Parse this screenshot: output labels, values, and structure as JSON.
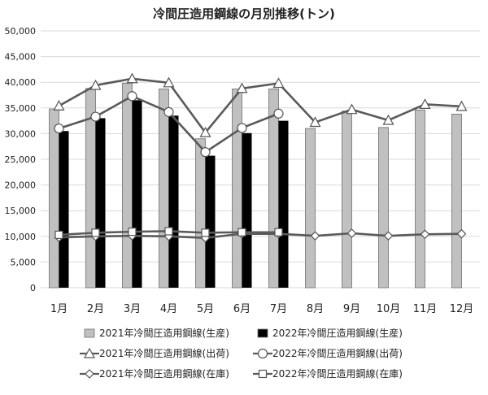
{
  "chart_data": {
    "type": "bar",
    "title": "冷間圧造用鋼線の月別推移(トン)",
    "categories": [
      "1月",
      "2月",
      "3月",
      "4月",
      "5月",
      "6月",
      "7月",
      "8月",
      "9月",
      "10月",
      "11月",
      "12月"
    ],
    "ylim": [
      0,
      50000
    ],
    "yticks": [
      "0",
      "5,000",
      "10,000",
      "15,000",
      "20,000",
      "25,000",
      "30,000",
      "35,000",
      "40,000",
      "45,000",
      "50,000"
    ],
    "grid": true,
    "legend_position": "bottom",
    "bar_series": [
      {
        "name": "2021年冷間圧造用鋼線(生産)",
        "color": "#c0c0c0",
        "values": [
          34800,
          38800,
          39800,
          38700,
          29000,
          38700,
          38700,
          31000,
          34400,
          31200,
          34600,
          33800
        ]
      },
      {
        "name": "2022年冷間圧造用鋼線(生産)",
        "color": "#000000",
        "values": [
          30500,
          33000,
          36500,
          33500,
          25700,
          30100,
          32500,
          null,
          null,
          null,
          null,
          null
        ]
      }
    ],
    "line_series": [
      {
        "name": "2021年冷間圧造用鋼線(出荷)",
        "marker": "triangle",
        "values": [
          35400,
          39400,
          40700,
          39900,
          30200,
          38800,
          39800,
          32200,
          34700,
          32600,
          35700,
          35300
        ]
      },
      {
        "name": "2022年冷間圧造用鋼線(出荷)",
        "marker": "circle",
        "values": [
          31000,
          33300,
          37300,
          34200,
          26400,
          31100,
          33900,
          null,
          null,
          null,
          null,
          null
        ]
      },
      {
        "name": "2021年冷間圧造用鋼線(在庫)",
        "marker": "diamond",
        "values": [
          9800,
          10000,
          10100,
          10000,
          9700,
          10500,
          10500,
          10100,
          10600,
          10100,
          10400,
          10500
        ]
      },
      {
        "name": "2022年冷間圧造用鋼線(在庫)",
        "marker": "square",
        "values": [
          10300,
          10700,
          10900,
          11000,
          10700,
          10800,
          10800,
          null,
          null,
          null,
          null,
          null
        ]
      }
    ]
  }
}
